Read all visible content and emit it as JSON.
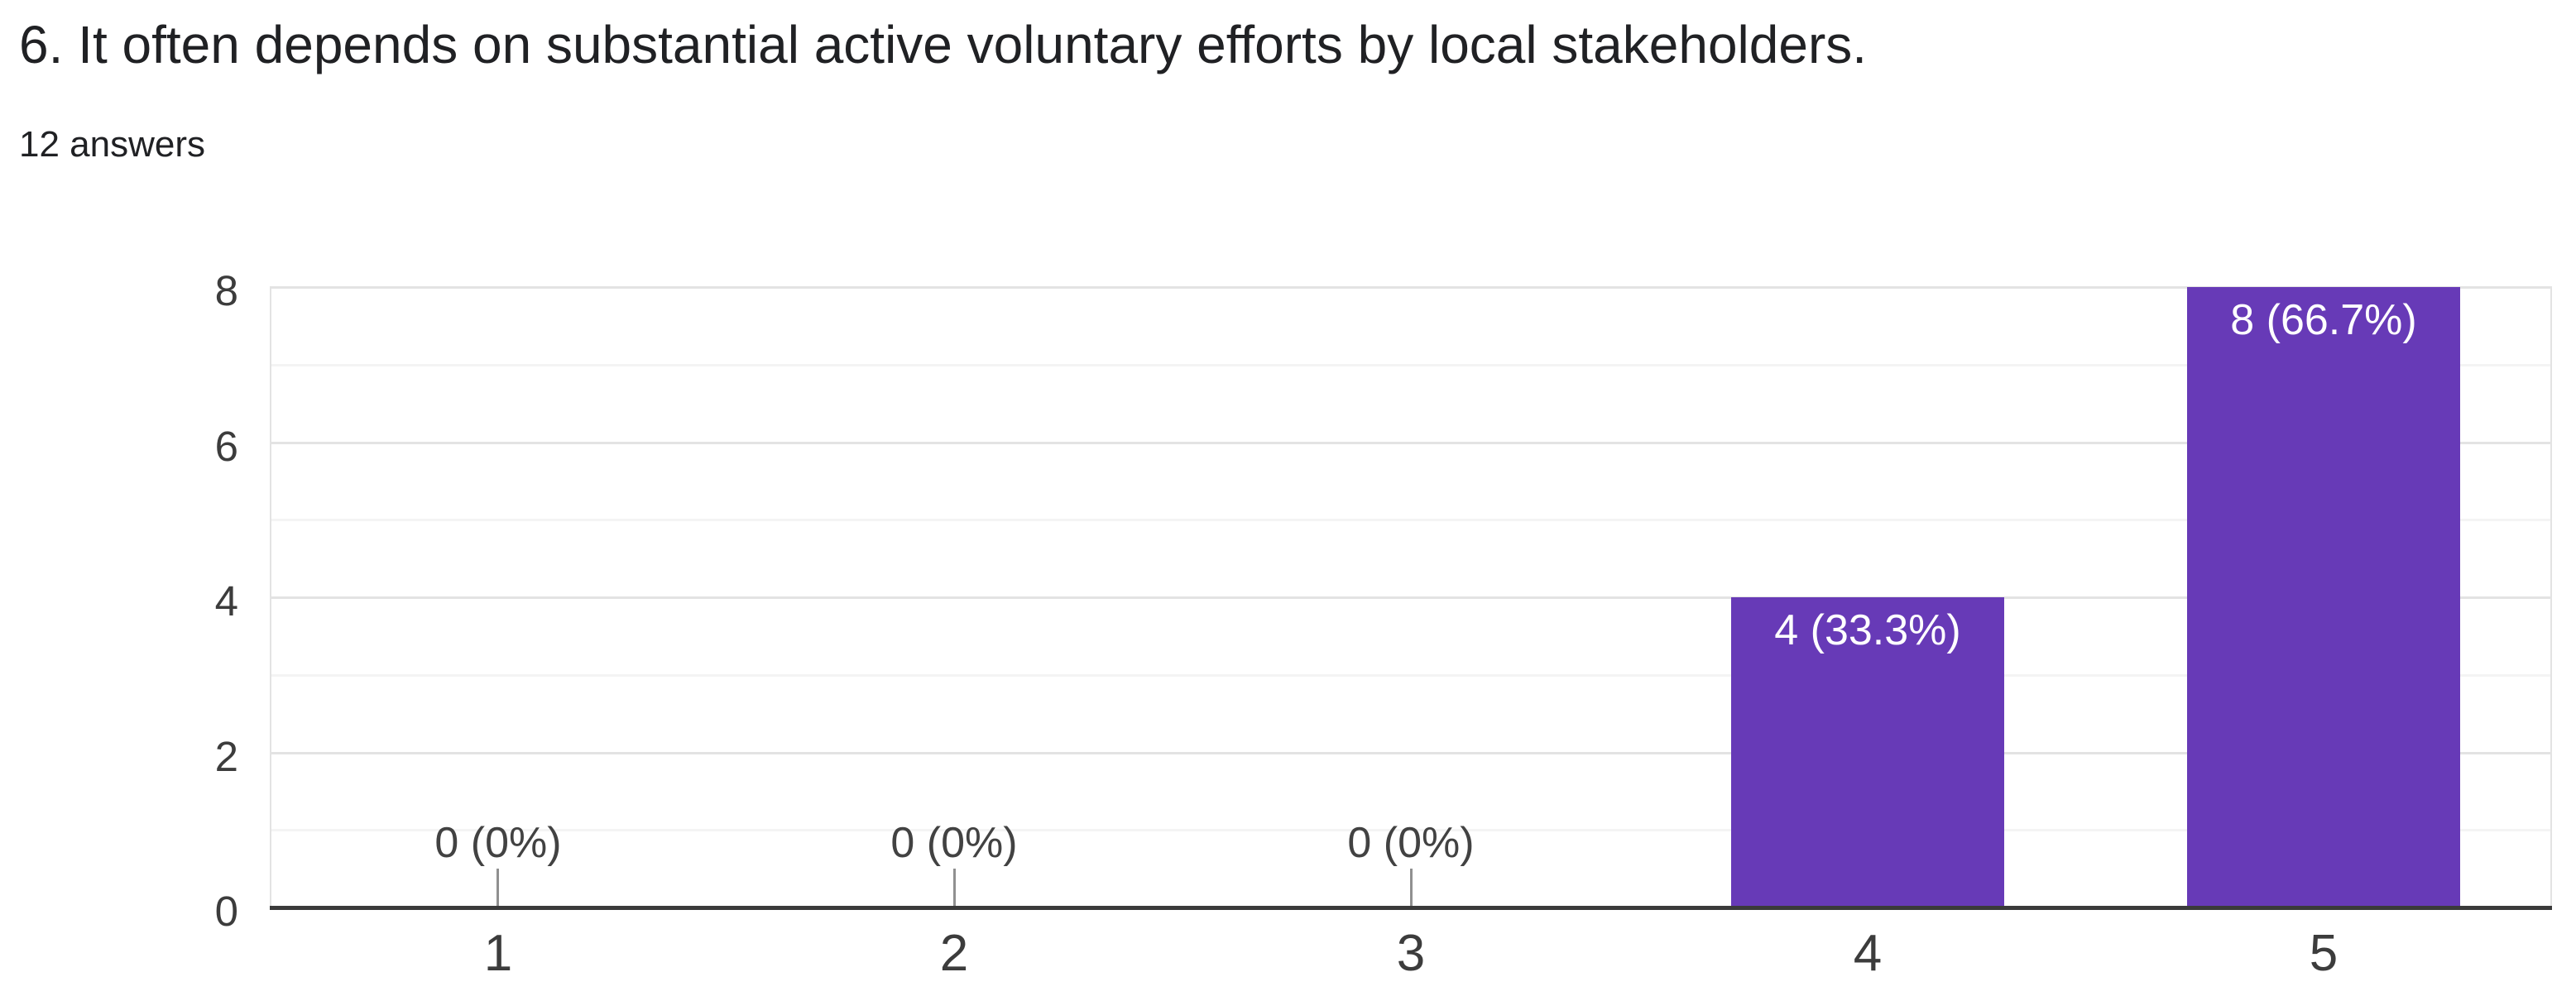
{
  "header": {
    "title": "6. It often depends on substantial active voluntary efforts by local stakeholders.",
    "answers_label": "12 answers"
  },
  "chart_data": {
    "type": "bar",
    "title": "6. It often depends on substantial active voluntary efforts by local stakeholders.",
    "subtitle": "12 answers",
    "total_answers": 12,
    "categories": [
      "1",
      "2",
      "3",
      "4",
      "5"
    ],
    "values": [
      0,
      0,
      0,
      4,
      8
    ],
    "percentages": [
      0,
      0,
      0,
      33.3,
      66.7
    ],
    "labels": [
      "0 (0%)",
      "0 (0%)",
      "0 (0%)",
      "4 (33.3%)",
      "8 (66.7%)"
    ],
    "xlabel": "",
    "ylabel": "",
    "ylim": [
      0,
      8
    ],
    "yticks": [
      0,
      2,
      4,
      6,
      8
    ],
    "minor_yticks": [
      1,
      3,
      5,
      7
    ],
    "grid": true,
    "legend": "none",
    "colors": {
      "bar": "#673ab7",
      "bar_label_text": "#ffffff",
      "zero_label_text": "#424242",
      "tick_label_text": "#3c3c3c",
      "title_text": "#202124",
      "subtitle_text": "#202124",
      "axis_line": "#3a3a3a",
      "grid_major": "#e3e3e3",
      "grid_minor": "#f4f4f4",
      "stem": "#909090",
      "background": "#ffffff"
    }
  }
}
